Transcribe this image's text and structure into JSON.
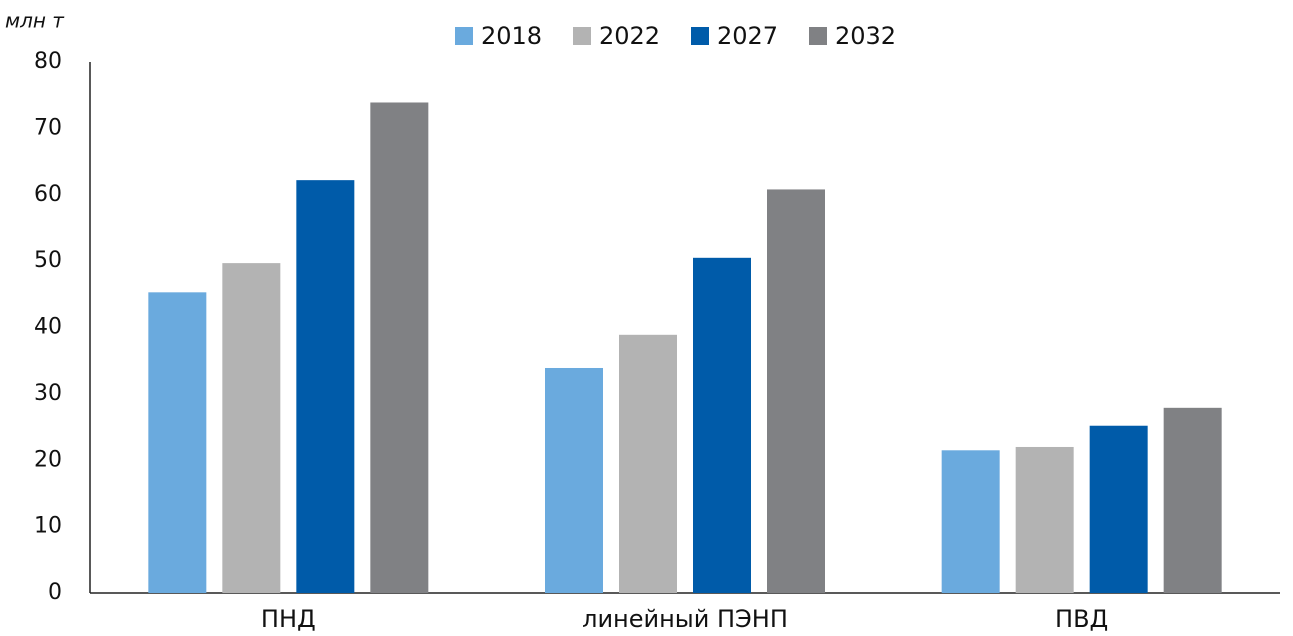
{
  "chart_data": {
    "type": "bar",
    "y_label": "млн т",
    "categories": [
      "ПНД",
      "линейный ПЭНП",
      "ПВД"
    ],
    "series": [
      {
        "name": "2018",
        "color": "#6aaade",
        "values": [
          45.3,
          33.9,
          21.5
        ]
      },
      {
        "name": "2022",
        "color": "#b3b3b3",
        "values": [
          49.7,
          38.9,
          22.0
        ]
      },
      {
        "name": "2027",
        "color": "#005ba9",
        "values": [
          62.2,
          50.5,
          25.2
        ]
      },
      {
        "name": "2032",
        "color": "#808184",
        "values": [
          73.9,
          60.8,
          27.9
        ]
      }
    ],
    "ylim": [
      0,
      80
    ],
    "yticks": [
      0,
      10,
      20,
      30,
      40,
      50,
      60,
      70,
      80
    ],
    "grid": false,
    "legend": "top"
  }
}
